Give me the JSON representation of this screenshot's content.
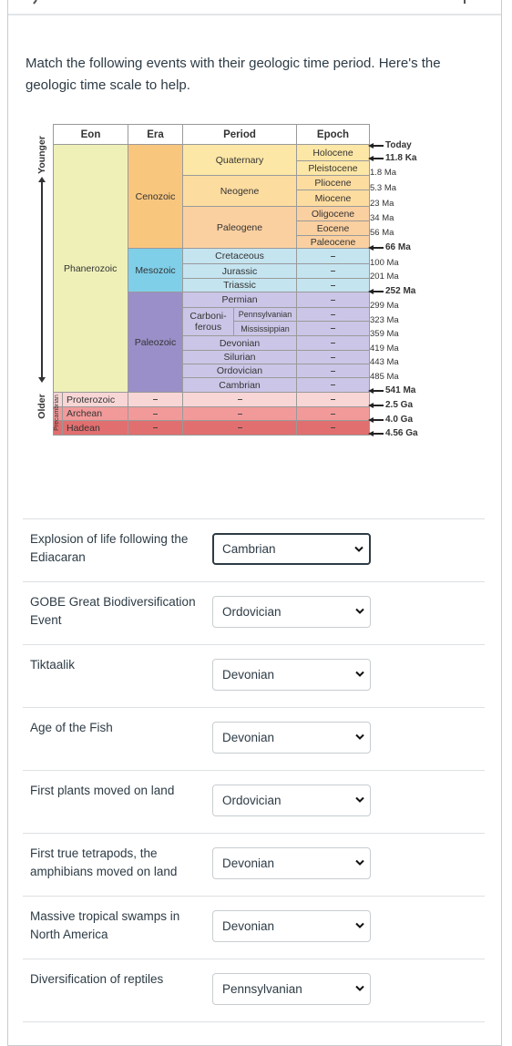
{
  "question": "Match the following events with their geologic time period. Here's the geologic time scale to help.",
  "scale": {
    "headers": [
      "Eon",
      "Era",
      "Period",
      "Epoch"
    ],
    "younger": "Younger",
    "older": "Older",
    "precambrian": "Precambrian",
    "eons": [
      "Phanerozoic",
      "Proterozoic",
      "Archean",
      "Hadean"
    ],
    "eras": [
      "Cenozoic",
      "Mesozoic",
      "Paleozoic"
    ],
    "periods": [
      "Quaternary",
      "Neogene",
      "Paleogene",
      "Cretaceous",
      "Jurassic",
      "Triassic",
      "Permian",
      "Devonian",
      "Silurian",
      "Ordovician",
      "Cambrian"
    ],
    "carboniferous": {
      "lines": [
        "Carboni-",
        "ferous"
      ],
      "subperiods": [
        "Pennsylvanian",
        "Mississippian"
      ]
    },
    "epochs": [
      "Holocene",
      "Pleistocene",
      "Pliocene",
      "Miocene",
      "Oligocene",
      "Eocene",
      "Paleocene"
    ],
    "times": [
      "Today",
      "11.8 Ka",
      "1.8 Ma",
      "5.3 Ma",
      "23 Ma",
      "34 Ma",
      "56 Ma",
      "66 Ma",
      "100 Ma",
      "201 Ma",
      "252 Ma",
      "299 Ma",
      "323 Ma",
      "359 Ma",
      "419 Ma",
      "443 Ma",
      "485 Ma",
      "541 Ma",
      "2.5 Ga",
      "4.0 Ga",
      "4.56 Ga"
    ]
  },
  "items": [
    {
      "event": "Explosion of life following the Ediacaran",
      "answer": "Cambrian"
    },
    {
      "event": "GOBE Great Biodiversification Event",
      "answer": "Ordovician"
    },
    {
      "event": "Tiktaalik",
      "answer": "Devonian"
    },
    {
      "event": "Age of the Fish",
      "answer": "Devonian"
    },
    {
      "event": "First plants moved on land",
      "answer": "Ordovician"
    },
    {
      "event": "First true tetrapods, the amphibians moved on land",
      "answer": "Devonian"
    },
    {
      "event": "Massive tropical swamps in North America",
      "answer": "Devonian"
    },
    {
      "event": "Diversification of reptiles",
      "answer": "Pennsylvanian"
    }
  ]
}
